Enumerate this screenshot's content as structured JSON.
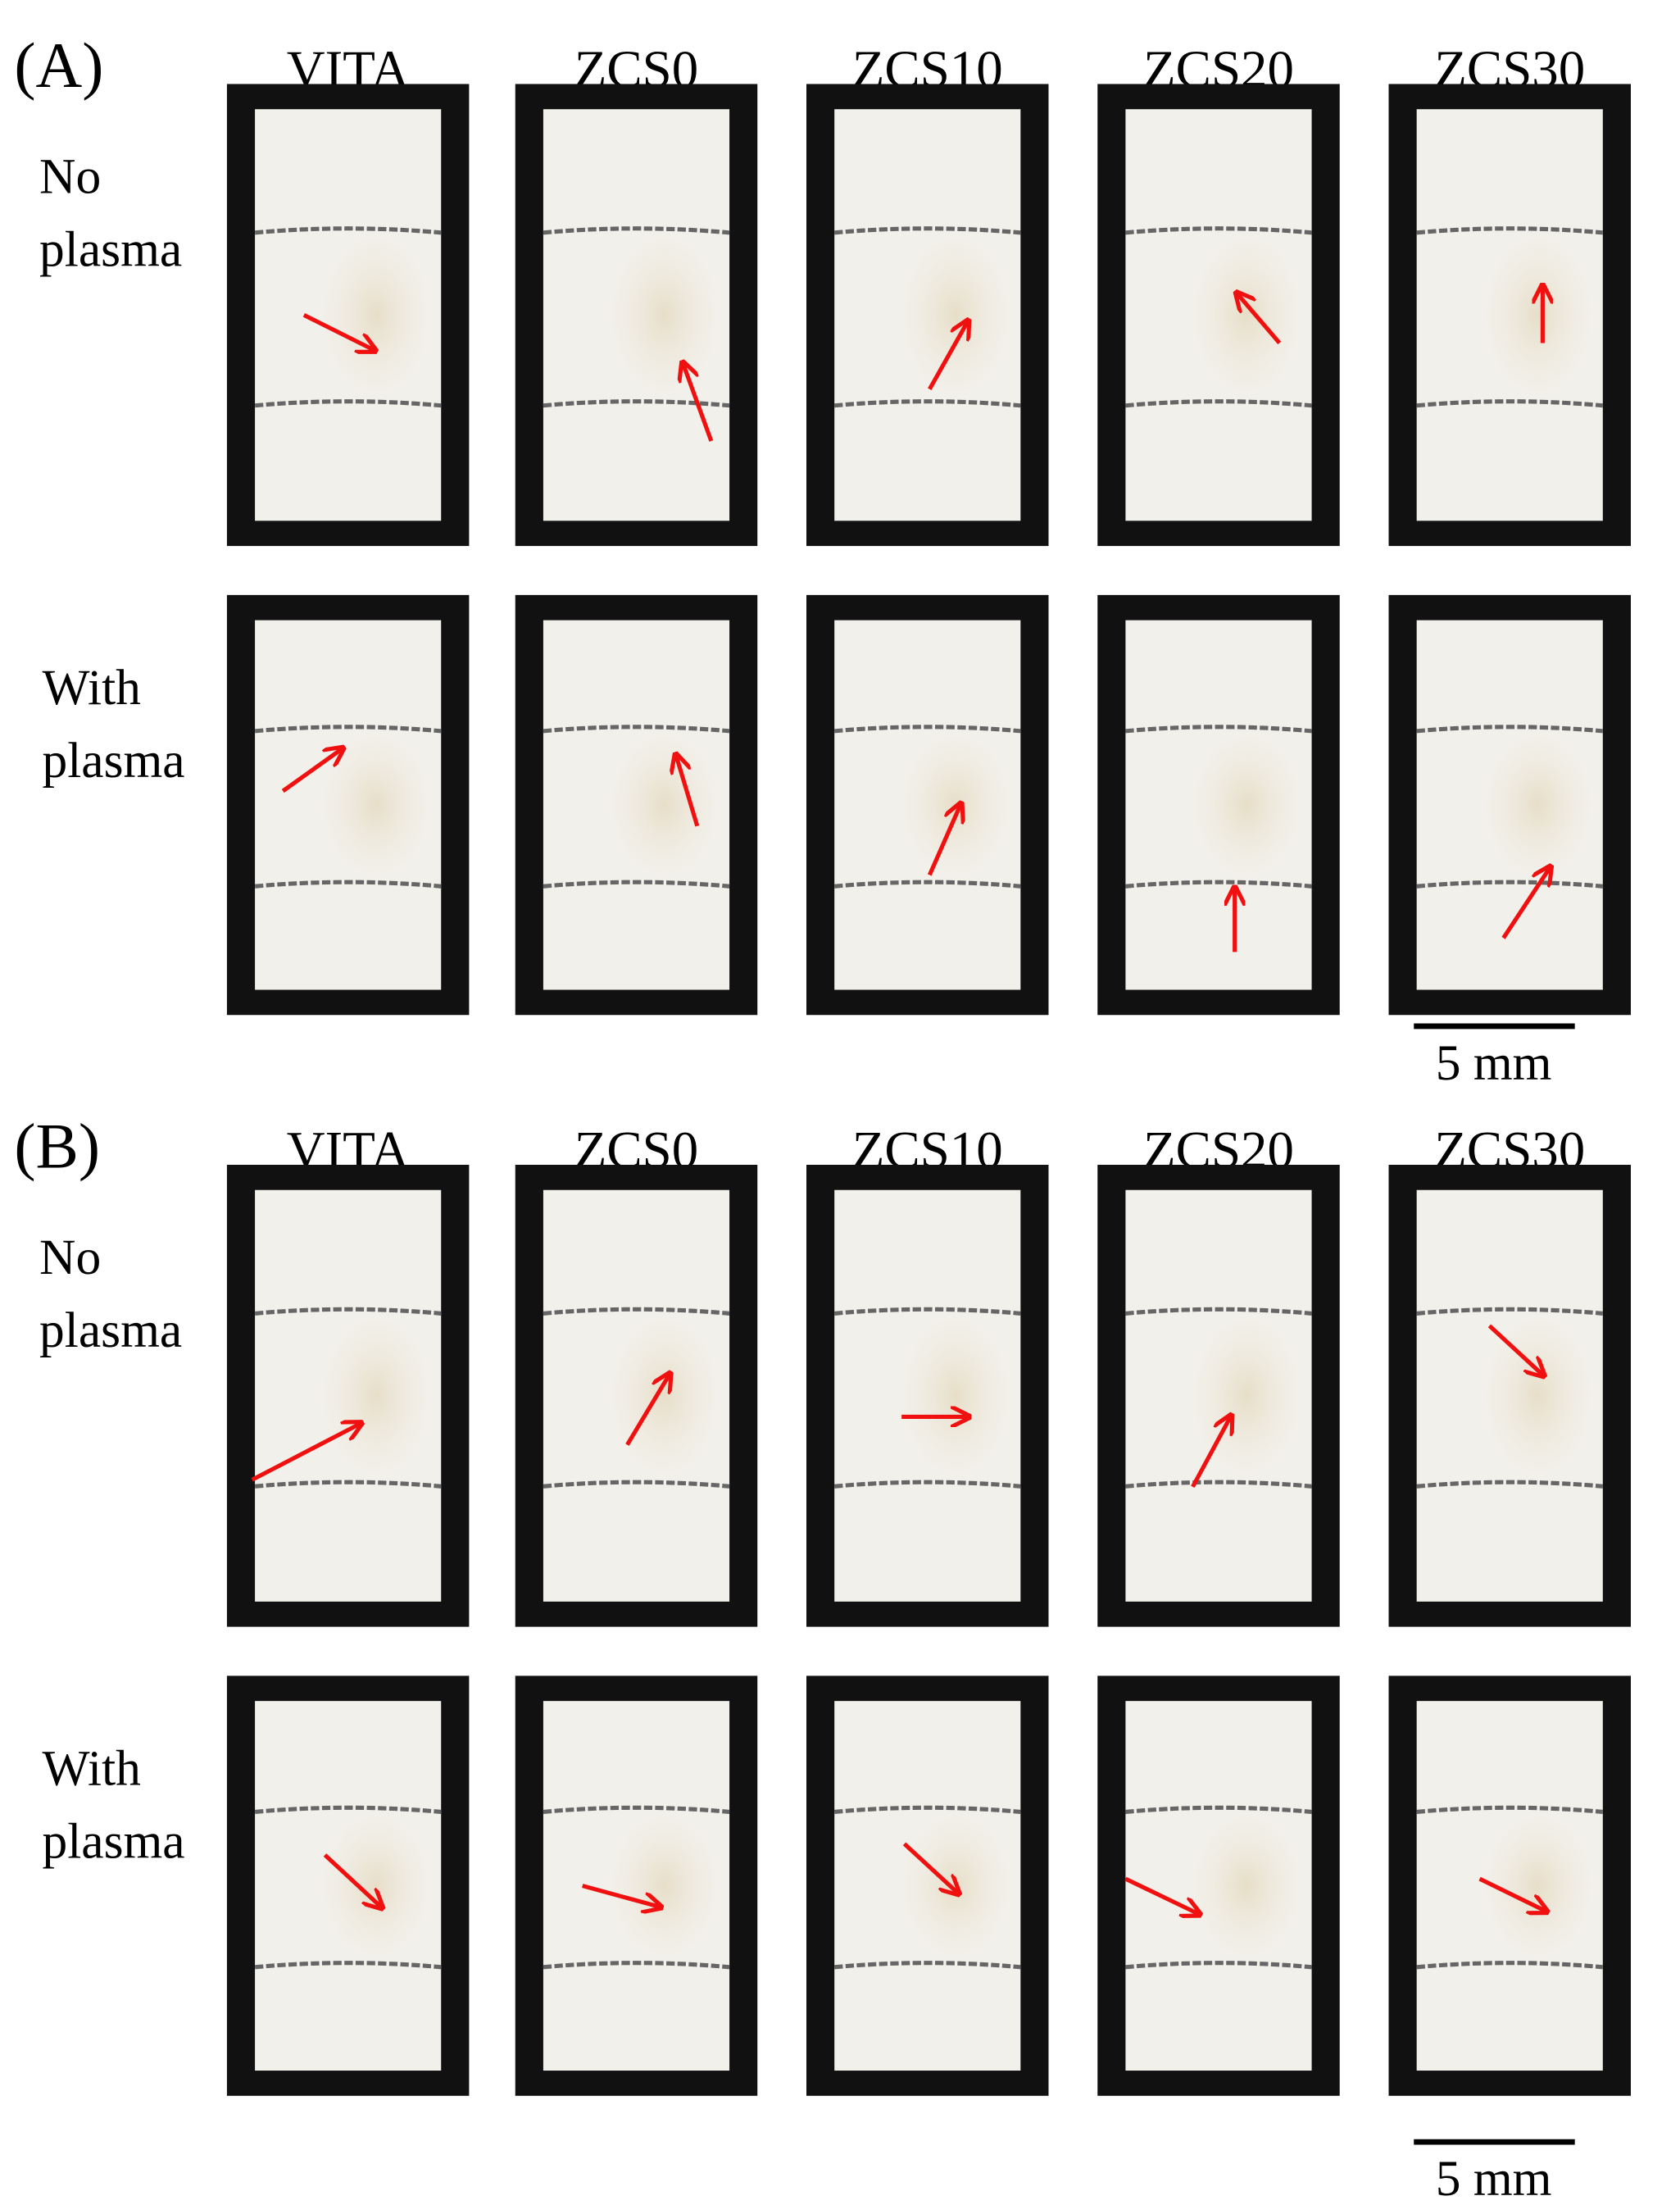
{
  "panels": [
    {
      "label": "(A)",
      "columns": [
        "VITA",
        "ZCS0",
        "ZCS10",
        "ZCS20",
        "ZCS30"
      ],
      "rows": [
        [
          "No",
          "plasma"
        ],
        [
          "With",
          "plasma"
        ]
      ],
      "scale_bar": "5 mm"
    },
    {
      "label": "(B)",
      "columns": [
        "VITA",
        "ZCS0",
        "ZCS10",
        "ZCS20",
        "ZCS30"
      ],
      "rows": [
        [
          "No",
          "plasma"
        ],
        [
          "With",
          "plasma"
        ]
      ],
      "scale_bar": "5 mm"
    }
  ]
}
